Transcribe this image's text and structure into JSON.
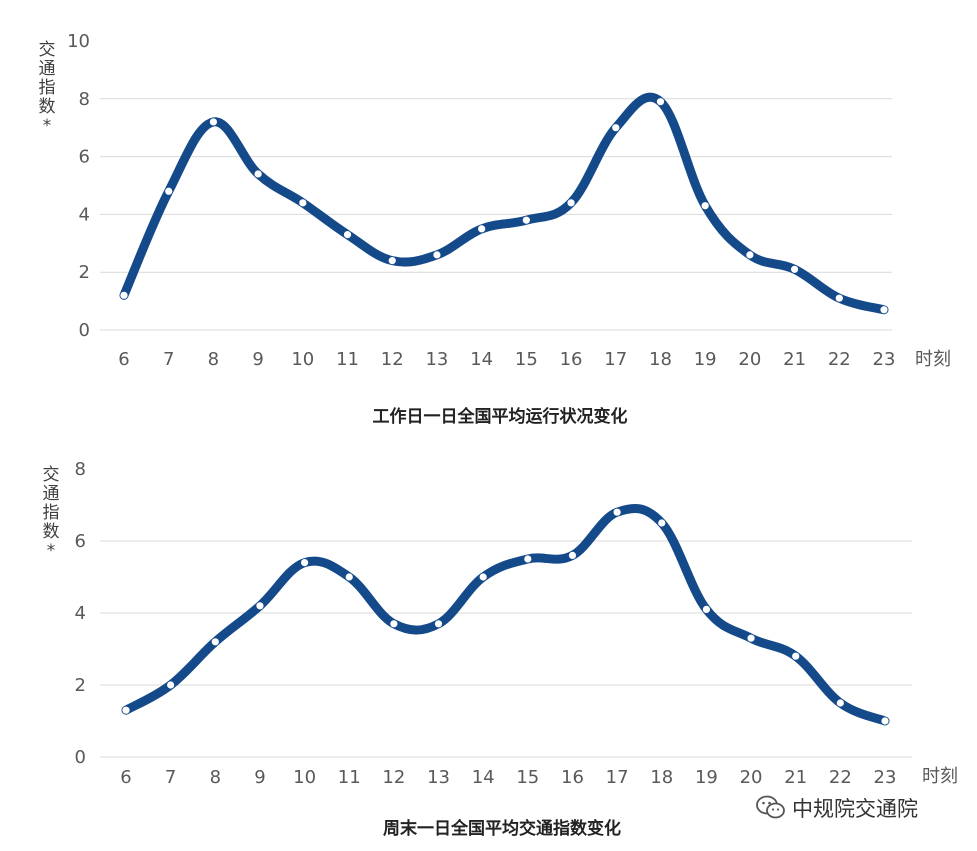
{
  "chart_data": [
    {
      "type": "line",
      "title": "工作日一日全国平均运行状况变化",
      "ylabel": "交通指数*",
      "xlabel": "时刻",
      "x": [
        6,
        7,
        8,
        9,
        10,
        11,
        12,
        13,
        14,
        15,
        16,
        17,
        18,
        19,
        20,
        21,
        22,
        23
      ],
      "y_ticks": [
        0,
        2,
        4,
        6,
        8,
        10
      ],
      "ylim": [
        0,
        10
      ],
      "grid": true,
      "series": [
        {
          "values": [
            1.2,
            4.8,
            7.2,
            5.4,
            4.4,
            3.3,
            2.4,
            2.6,
            3.5,
            3.8,
            4.4,
            7.0,
            7.9,
            4.3,
            2.6,
            2.1,
            1.1,
            0.7
          ],
          "color": "#154a8a"
        }
      ]
    },
    {
      "type": "line",
      "title": "周末一日全国平均交通指数变化",
      "ylabel": "交通指数*",
      "xlabel": "时刻",
      "x": [
        6,
        7,
        8,
        9,
        10,
        11,
        12,
        13,
        14,
        15,
        16,
        17,
        18,
        19,
        20,
        21,
        22,
        23
      ],
      "y_ticks": [
        0,
        2,
        4,
        6,
        8
      ],
      "ylim": [
        0,
        8
      ],
      "grid": true,
      "series": [
        {
          "values": [
            1.3,
            2.0,
            3.2,
            4.2,
            5.4,
            5.0,
            3.7,
            3.7,
            5.0,
            5.5,
            5.6,
            6.8,
            6.5,
            4.1,
            3.3,
            2.8,
            1.5,
            1.0
          ],
          "color": "#154a8a"
        }
      ]
    }
  ],
  "watermark": {
    "text": "中规院交通院",
    "icon": "wechat-icon"
  }
}
